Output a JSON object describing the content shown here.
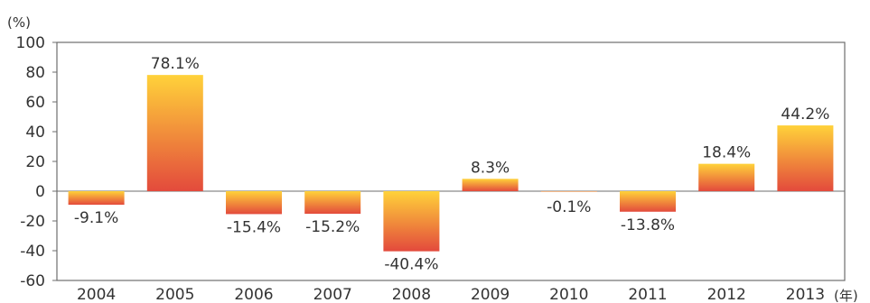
{
  "chart_data": {
    "type": "bar",
    "y_unit": "(%)",
    "x_unit": "(年)",
    "categories": [
      "2004",
      "2005",
      "2006",
      "2007",
      "2008",
      "2009",
      "2010",
      "2011",
      "2012",
      "2013"
    ],
    "values": [
      -9.1,
      78.1,
      -15.4,
      -15.2,
      -40.4,
      8.3,
      -0.1,
      -13.8,
      18.4,
      44.2
    ],
    "data_labels": [
      "-9.1%",
      "78.1%",
      "-15.4%",
      "-15.2%",
      "-40.4%",
      "8.3%",
      "-0.1%",
      "-13.8%",
      "18.4%",
      "44.2%"
    ],
    "ylim": [
      -60,
      100
    ],
    "yticks": [
      100,
      80,
      60,
      40,
      20,
      0,
      -20,
      -40,
      -60
    ],
    "grid": false,
    "colors": {
      "bar_top": "#ffd23a",
      "bar_bottom": "#e34a3c",
      "axis": "#6d6d6d"
    }
  }
}
